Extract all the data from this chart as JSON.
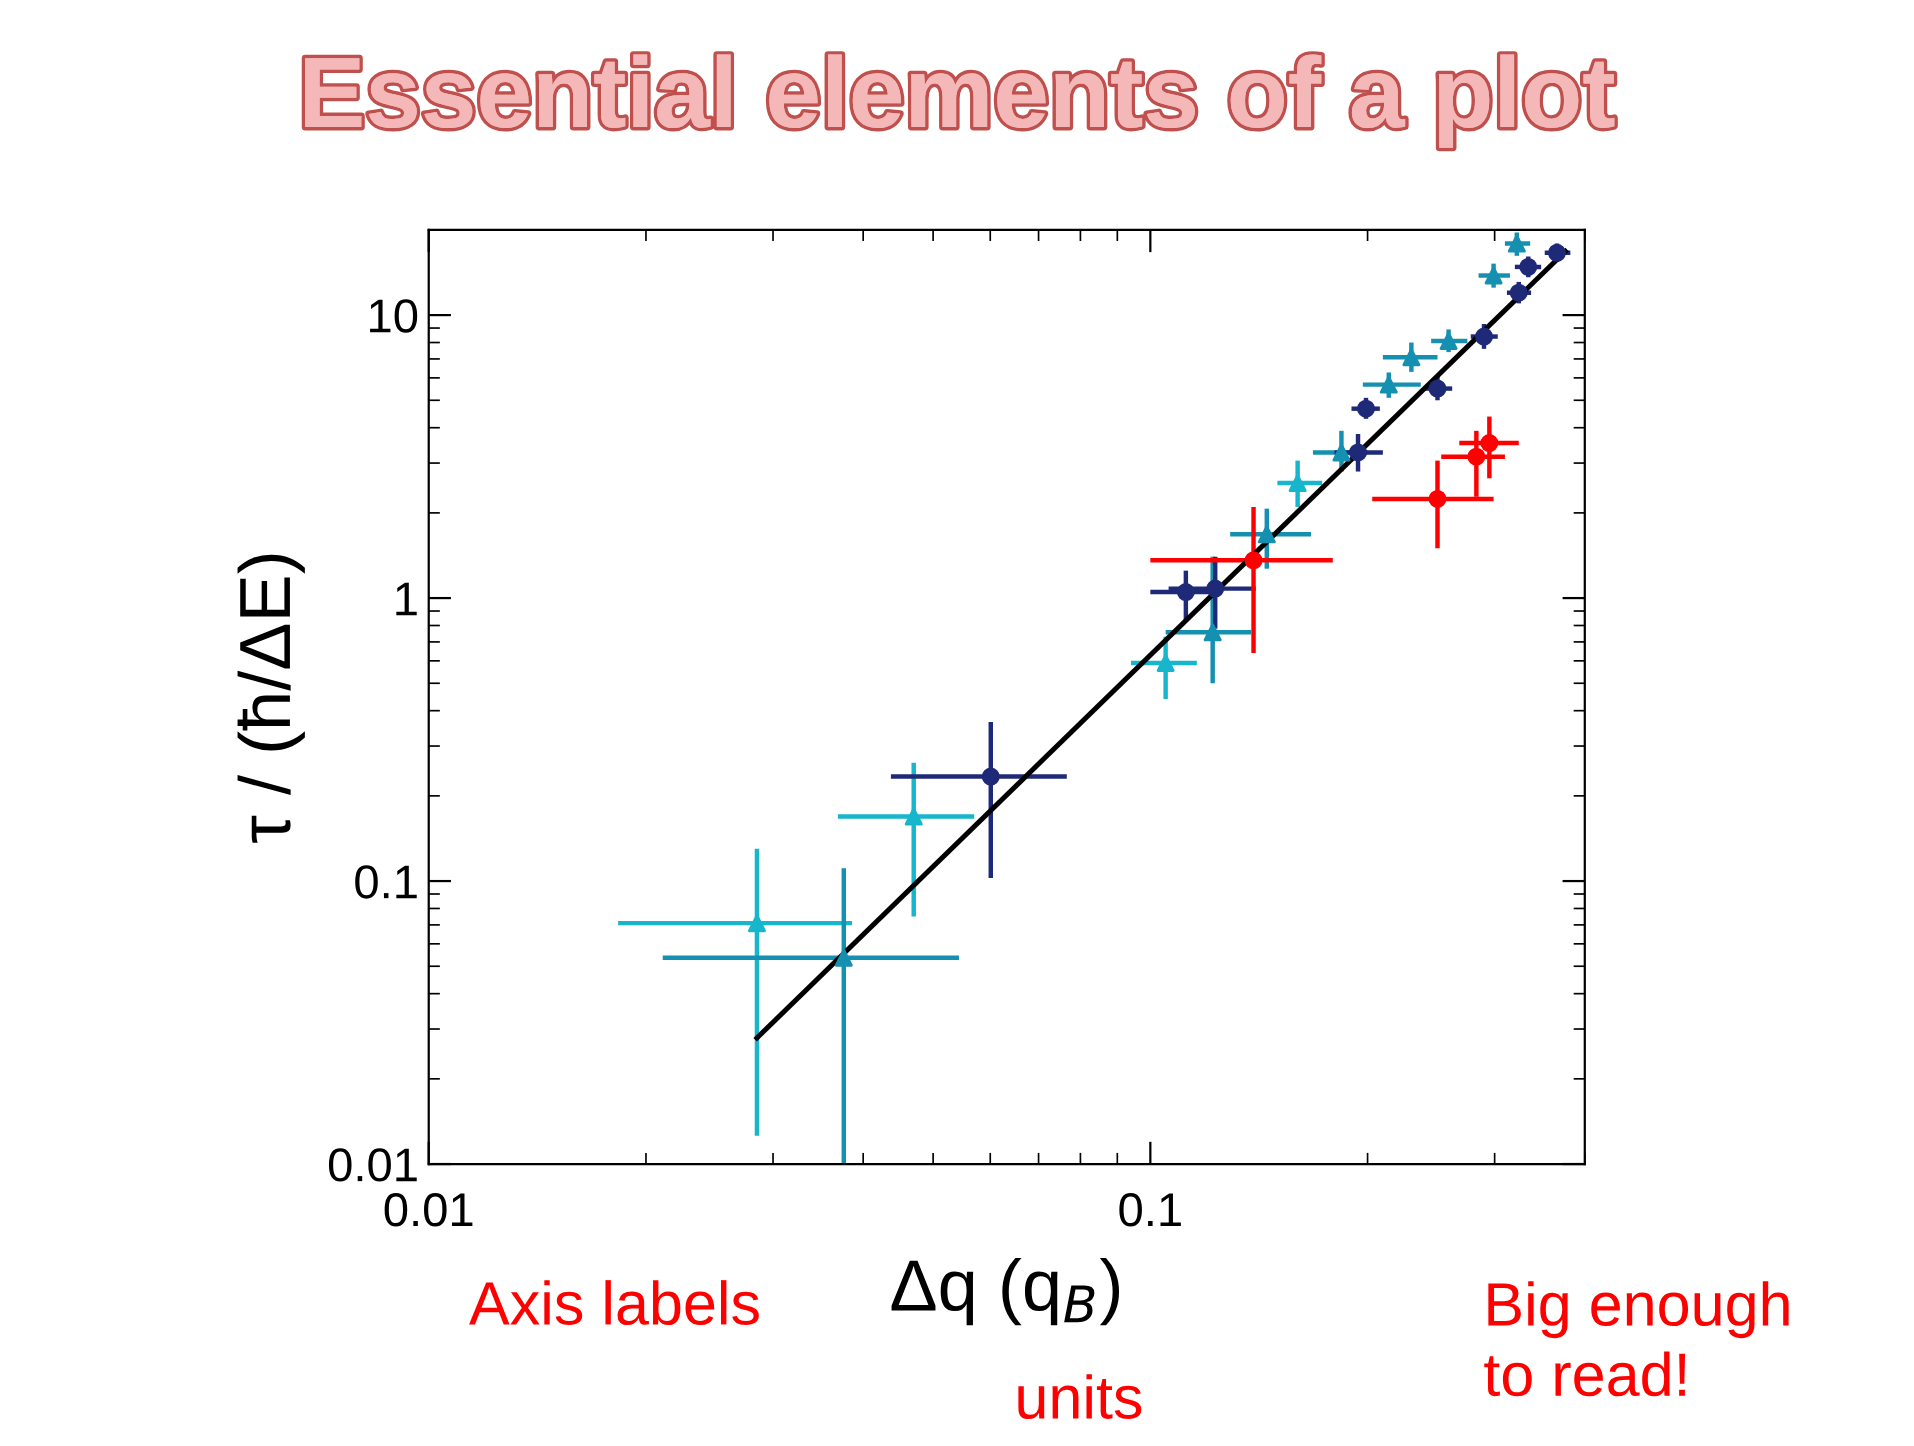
{
  "chart_data": {
    "type": "scatter",
    "title": "Essential elements of a plot",
    "xlabel": "Δq (q$_{B}$)",
    "ylabel": "τ / (ħ/ΔE)",
    "log": "xy",
    "xlim": [
      0.01,
      0.4
    ],
    "ylim": [
      0.01,
      20
    ],
    "xticks": [
      0.01,
      0.1
    ],
    "yticks": [
      0.01,
      0.1,
      1,
      10
    ],
    "grid": false,
    "legend": false,
    "annotations": [
      "Axis labels",
      "units",
      "Big enough\nto read!"
    ],
    "series": [
      {
        "color": "#17b6cc",
        "marker": "triangle",
        "x": [
          0.0285,
          0.047,
          0.105,
          0.16
        ],
        "values": [
          0.071,
          0.169,
          0.59,
          2.55
        ],
        "errors": [
          [
            0.0126,
            0.13
          ],
          [
            0.075,
            0.262
          ],
          [
            0.44,
            0.73
          ],
          [
            2.1,
            3.06
          ]
        ],
        "xerrors": [
          [
            0.0183,
            0.0386
          ],
          [
            0.0369,
            0.057
          ],
          [
            0.094,
            0.116
          ],
          [
            0.15,
            0.173
          ]
        ]
      },
      {
        "color": "#1590b0",
        "marker": "triangle",
        "x": [
          0.0376,
          0.122,
          0.145,
          0.184,
          0.214,
          0.23,
          0.259,
          0.299,
          0.322
        ],
        "values": [
          0.0536,
          0.757,
          1.68,
          3.27,
          5.68,
          7.1,
          8.1,
          13.8,
          17.9
        ],
        "errors": [
          [
            0.01,
            0.111
          ],
          [
            0.5,
            1.4
          ],
          [
            1.27,
            2.07
          ],
          [
            2.8,
            3.9
          ],
          [
            5.1,
            6.27
          ],
          [
            6.3,
            8.0
          ],
          [
            7.4,
            8.9
          ],
          [
            12.5,
            15.2
          ],
          [
            16.2,
            19.6
          ]
        ],
        "xerrors": [
          [
            0.0211,
            0.0543
          ],
          [
            0.105,
            0.138
          ],
          [
            0.129,
            0.167
          ],
          [
            0.168,
            0.2
          ],
          [
            0.197,
            0.237
          ],
          [
            0.21,
            0.25
          ],
          [
            0.245,
            0.275
          ],
          [
            0.285,
            0.315
          ],
          [
            0.31,
            0.336
          ]
        ]
      },
      {
        "color": "#1e2a78",
        "marker": "circle",
        "x": [
          0.0601,
          0.112,
          0.123,
          0.194,
          0.199,
          0.25,
          0.29,
          0.324,
          0.334,
          0.366
        ],
        "values": [
          0.234,
          1.05,
          1.08,
          3.27,
          4.67,
          5.5,
          8.4,
          12.0,
          14.8,
          16.6
        ],
        "errors": [
          [
            0.1026,
            0.365
          ],
          [
            0.83,
            1.25
          ],
          [
            0.78,
            1.4
          ],
          [
            2.8,
            3.8
          ],
          [
            4.3,
            5.1
          ],
          [
            5.0,
            6.1
          ],
          [
            7.6,
            9.3
          ],
          [
            11.0,
            13.1
          ],
          [
            13.6,
            16.1
          ],
          [
            15.4,
            17.9
          ]
        ],
        "xerrors": [
          [
            0.0437,
            0.0766
          ],
          [
            0.1,
            0.125
          ],
          [
            0.106,
            0.14
          ],
          [
            0.18,
            0.21
          ],
          [
            0.19,
            0.208
          ],
          [
            0.24,
            0.262
          ],
          [
            0.278,
            0.303
          ],
          [
            0.312,
            0.337
          ],
          [
            0.32,
            0.348
          ],
          [
            0.352,
            0.382
          ]
        ]
      },
      {
        "color": "#ff0000",
        "marker": "circle",
        "x": [
          0.139,
          0.25,
          0.283,
          0.295
        ],
        "values": [
          1.36,
          2.24,
          3.16,
          3.53
        ],
        "errors": [
          [
            0.64,
            2.1
          ],
          [
            1.5,
            3.06
          ],
          [
            2.28,
            3.9
          ],
          [
            2.65,
            4.38
          ]
        ],
        "xerrors": [
          [
            0.1,
            0.179
          ],
          [
            0.203,
            0.299
          ],
          [
            0.253,
            0.31
          ],
          [
            0.268,
            0.324
          ]
        ]
      },
      {
        "type": "line",
        "color": "#000000",
        "line_style": "solid",
        "x": [
          0.0285,
          0.376
        ],
        "values": [
          0.0279,
          16.8
        ]
      }
    ]
  }
}
